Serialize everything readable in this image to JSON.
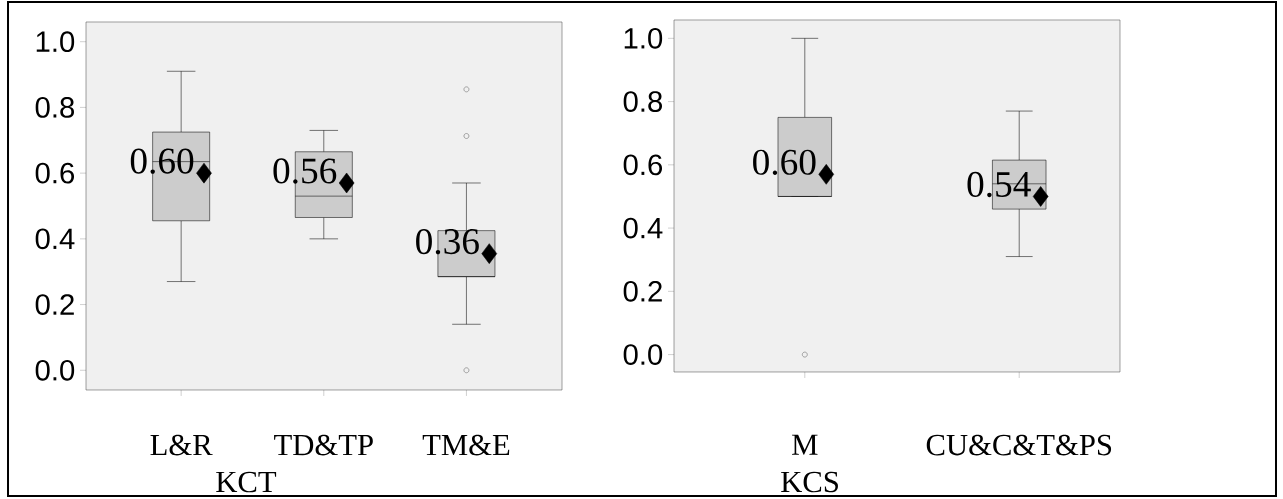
{
  "chart_data": [
    {
      "type": "box",
      "categories": [
        "L&R",
        "TD&TP",
        "TM&E"
      ],
      "xlabel": "KCT",
      "series": [
        {
          "color": "#cccccc",
          "boxes": [
            {
              "low": 0.27,
              "q1": 0.455,
              "median": 0.635,
              "q3": 0.725,
              "high": 0.91,
              "mean": 0.6
            },
            {
              "low": 0.4,
              "q1": 0.465,
              "median": 0.53,
              "q3": 0.665,
              "high": 0.73,
              "mean": 0.57
            },
            {
              "low": 0.14,
              "q1": 0.285,
              "median": 0.285,
              "q3": 0.425,
              "high": 0.57,
              "mean": 0.355,
              "outliers": [
                0.855,
                0.713,
                0.0
              ]
            }
          ]
        }
      ],
      "marker": "diamond",
      "ylim": [
        -0.06,
        1.06
      ],
      "yticks": [
        {
          "value": 0,
          "label": "0.0"
        },
        {
          "value": 0.2,
          "label": "0.2"
        },
        {
          "value": 0.4,
          "label": "0.4"
        },
        {
          "value": 0.6,
          "label": "0.6"
        },
        {
          "value": 0.8,
          "label": "0.8"
        },
        {
          "value": 1,
          "label": "1.0"
        }
      ],
      "annotations": [
        "0.60",
        "0.56",
        "0.36"
      ]
    },
    {
      "type": "box",
      "categories": [
        "M",
        "CU&C&T&PS"
      ],
      "xlabel": "KCS",
      "series": [
        {
          "color": "#cccccc",
          "boxes": [
            {
              "low": 0.5,
              "q1": 0.5,
              "median": 0.5,
              "q3": 0.75,
              "high": 1.0,
              "mean": 0.57,
              "outliers": [
                0.0
              ]
            },
            {
              "low": 0.31,
              "q1": 0.46,
              "median": 0.54,
              "q3": 0.615,
              "high": 0.77,
              "mean": 0.5
            }
          ]
        }
      ],
      "marker": "diamond",
      "ylim": [
        -0.055,
        1.058
      ],
      "yticks": [
        {
          "value": 0,
          "label": "0.0"
        },
        {
          "value": 0.2,
          "label": "0.2"
        },
        {
          "value": 0.4,
          "label": "0.4"
        },
        {
          "value": 0.6,
          "label": "0.6"
        },
        {
          "value": 0.8,
          "label": "0.8"
        },
        {
          "value": 1,
          "label": "1.0"
        }
      ],
      "annotations": [
        "0.60",
        "0.54"
      ]
    }
  ]
}
